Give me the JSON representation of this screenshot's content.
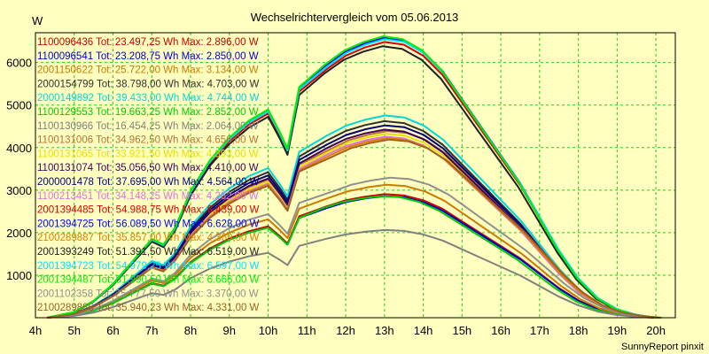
{
  "chart_data": {
    "type": "line",
    "title": "Wechselrichtervergleich vom 05.06.2013",
    "ylabel": "W",
    "footer": "SunnyReport pinxit",
    "xlim": [
      4,
      20.5
    ],
    "ylim": [
      0,
      6700
    ],
    "x_ticks": [
      {
        "v": 4,
        "label": "4h"
      },
      {
        "v": 5,
        "label": "5h"
      },
      {
        "v": 6,
        "label": "6h"
      },
      {
        "v": 7,
        "label": "7h"
      },
      {
        "v": 8,
        "label": "8h"
      },
      {
        "v": 9,
        "label": "9h"
      },
      {
        "v": 10,
        "label": "10h"
      },
      {
        "v": 11,
        "label": "11h"
      },
      {
        "v": 12,
        "label": "12h"
      },
      {
        "v": 13,
        "label": "13h"
      },
      {
        "v": 14,
        "label": "14h"
      },
      {
        "v": 15,
        "label": "15h"
      },
      {
        "v": 16,
        "label": "16h"
      },
      {
        "v": 17,
        "label": "17h"
      },
      {
        "v": 18,
        "label": "18h"
      },
      {
        "v": 19,
        "label": "19h"
      },
      {
        "v": 20,
        "label": "20h"
      }
    ],
    "y_ticks": [
      {
        "v": 1000,
        "label": "1000"
      },
      {
        "v": 2000,
        "label": "2000"
      },
      {
        "v": 3000,
        "label": "3000"
      },
      {
        "v": 4000,
        "label": "4000"
      },
      {
        "v": 5000,
        "label": "5000"
      },
      {
        "v": 6000,
        "label": "6000"
      }
    ],
    "grid": true,
    "legend_position": "top-left",
    "series": [
      {
        "name": "1100096436 Tot: 23.497,25 Wh Max: 2.896,00 W",
        "color": "#cc0000",
        "scale": 0.4369,
        "shift": 0
      },
      {
        "name": "1100096541 Tot: 23.208,75 Wh Max: 2.850,00 W",
        "color": "#0000cc",
        "scale": 0.43,
        "shift": 0
      },
      {
        "name": "2001150622 Tot: 25.722,00 Wh Max: 3.134,00 W",
        "color": "#cc7a00",
        "scale": 0.47,
        "shift": 0.3
      },
      {
        "name": "2000154799 Tot: 38.798,00 Wh Max: 4.703,00 W",
        "color": "#303030",
        "scale": 0.695,
        "shift": 0
      },
      {
        "name": "2000149892 Tot: 39.433,00 Wh Max: 4.744,00 W",
        "color": "#00d8d8",
        "scale": 0.715,
        "shift": 0.1
      },
      {
        "name": "1100129553 Tot: 19.663,25 Wh Max: 2.852,00 W",
        "color": "#00cc00",
        "scale": 0.43,
        "shift": -0.6
      },
      {
        "name": "1100130966 Tot: 16.454,25 Wh Max: 2.064,00 W",
        "color": "#808080",
        "scale": 0.31,
        "shift": 0
      },
      {
        "name": "1100131006 Tot: 34.962,50 Wh Max: 4.656,00 W",
        "color": "#b87333",
        "scale": 0.66,
        "shift": 0.5
      },
      {
        "name": "1100131065 Tot: 33.921,50 Wh Max: 4.393,00 W",
        "color": "#e8e000",
        "scale": 0.65,
        "shift": 0.2
      },
      {
        "name": "1100131074 Tot: 35.056,50 Wh Max: 4.410,00 W",
        "color": "#400060",
        "scale": 0.665,
        "shift": 0
      },
      {
        "name": "2000001478 Tot: 37.695,00 Wh Max: 4.564,00 W",
        "color": "#000080",
        "scale": 0.68,
        "shift": 0.1
      },
      {
        "name": "1100213451 Tot: 34.148,25 Wh Max: 4.262,00 W",
        "color": "#e070e0",
        "scale": 0.64,
        "shift": 0.1
      },
      {
        "name": "2001394485 Tot: 54.988,75 Wh Max: 6.439,00 W",
        "color": "#dd0000",
        "scale": 0.975,
        "shift": 0
      },
      {
        "name": "2001394725 Tot: 56.089,50 Wh Max: 6.628,00 W",
        "color": "#0000ff",
        "scale": 0.99,
        "shift": 0
      },
      {
        "name": "2100289887 Tot: 35.857,00 Wh Max: 4.369,00 W",
        "color": "#e08000",
        "scale": 0.635,
        "shift": 0.4
      },
      {
        "name": "2001393249 Tot: 51.391,50 Wh Max: 6.519,00 W",
        "color": "#202020",
        "scale": 0.96,
        "shift": -0.3
      },
      {
        "name": "2001394723 Tot: 54.979,25 Wh Max: 6.597,00 W",
        "color": "#00e0ff",
        "scale": 0.985,
        "shift": 0.05
      },
      {
        "name": "2001394487 Tot: 51.990,50 Wh Max: 6.666,00 W",
        "color": "#00ee00",
        "scale": 0.995,
        "shift": -0.2
      },
      {
        "name": "2001102358 Tot: 25.777,50 Wh Max: 3.370,00 W",
        "color": "#909090",
        "scale": 0.495,
        "shift": 1.0
      },
      {
        "name": "2100289886 Tot: 35.940,23 Wh Max: 4.331,00 W",
        "color": "#a06020",
        "scale": 0.63,
        "shift": 0.8
      }
    ]
  }
}
